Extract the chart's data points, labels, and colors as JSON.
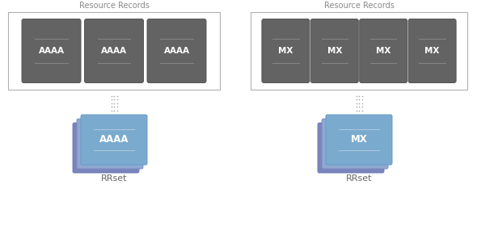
{
  "bg_color": "#ffffff",
  "rr_box_color": "#636363",
  "rr_line_color": "#888888",
  "rr_text_color": "#ffffff",
  "container_edge": "#b0b0b0",
  "container_fill": "#ffffff",
  "rrset_front_color": "#7aabcf",
  "rrset_mid_color": "#8fa8d0",
  "rrset_back_color": "#7b85bc",
  "rrset_text_color": "#ffffff",
  "rrset_line_color": "#b0c8e0",
  "dot_color": "#aaaaaa",
  "label_color": "#666666",
  "title_color": "#888888",
  "left_label": "Resource Records",
  "right_label": "Resource Records",
  "left_cards": [
    "AAAA",
    "AAAA",
    "AAAA"
  ],
  "right_cards": [
    "MX",
    "MX",
    "MX",
    "MX"
  ],
  "left_rrset_label": "AAAA",
  "right_rrset_label": "MX",
  "rrset_text": "RRset",
  "fig_w": 5.9,
  "fig_h": 2.81,
  "dpi": 100
}
